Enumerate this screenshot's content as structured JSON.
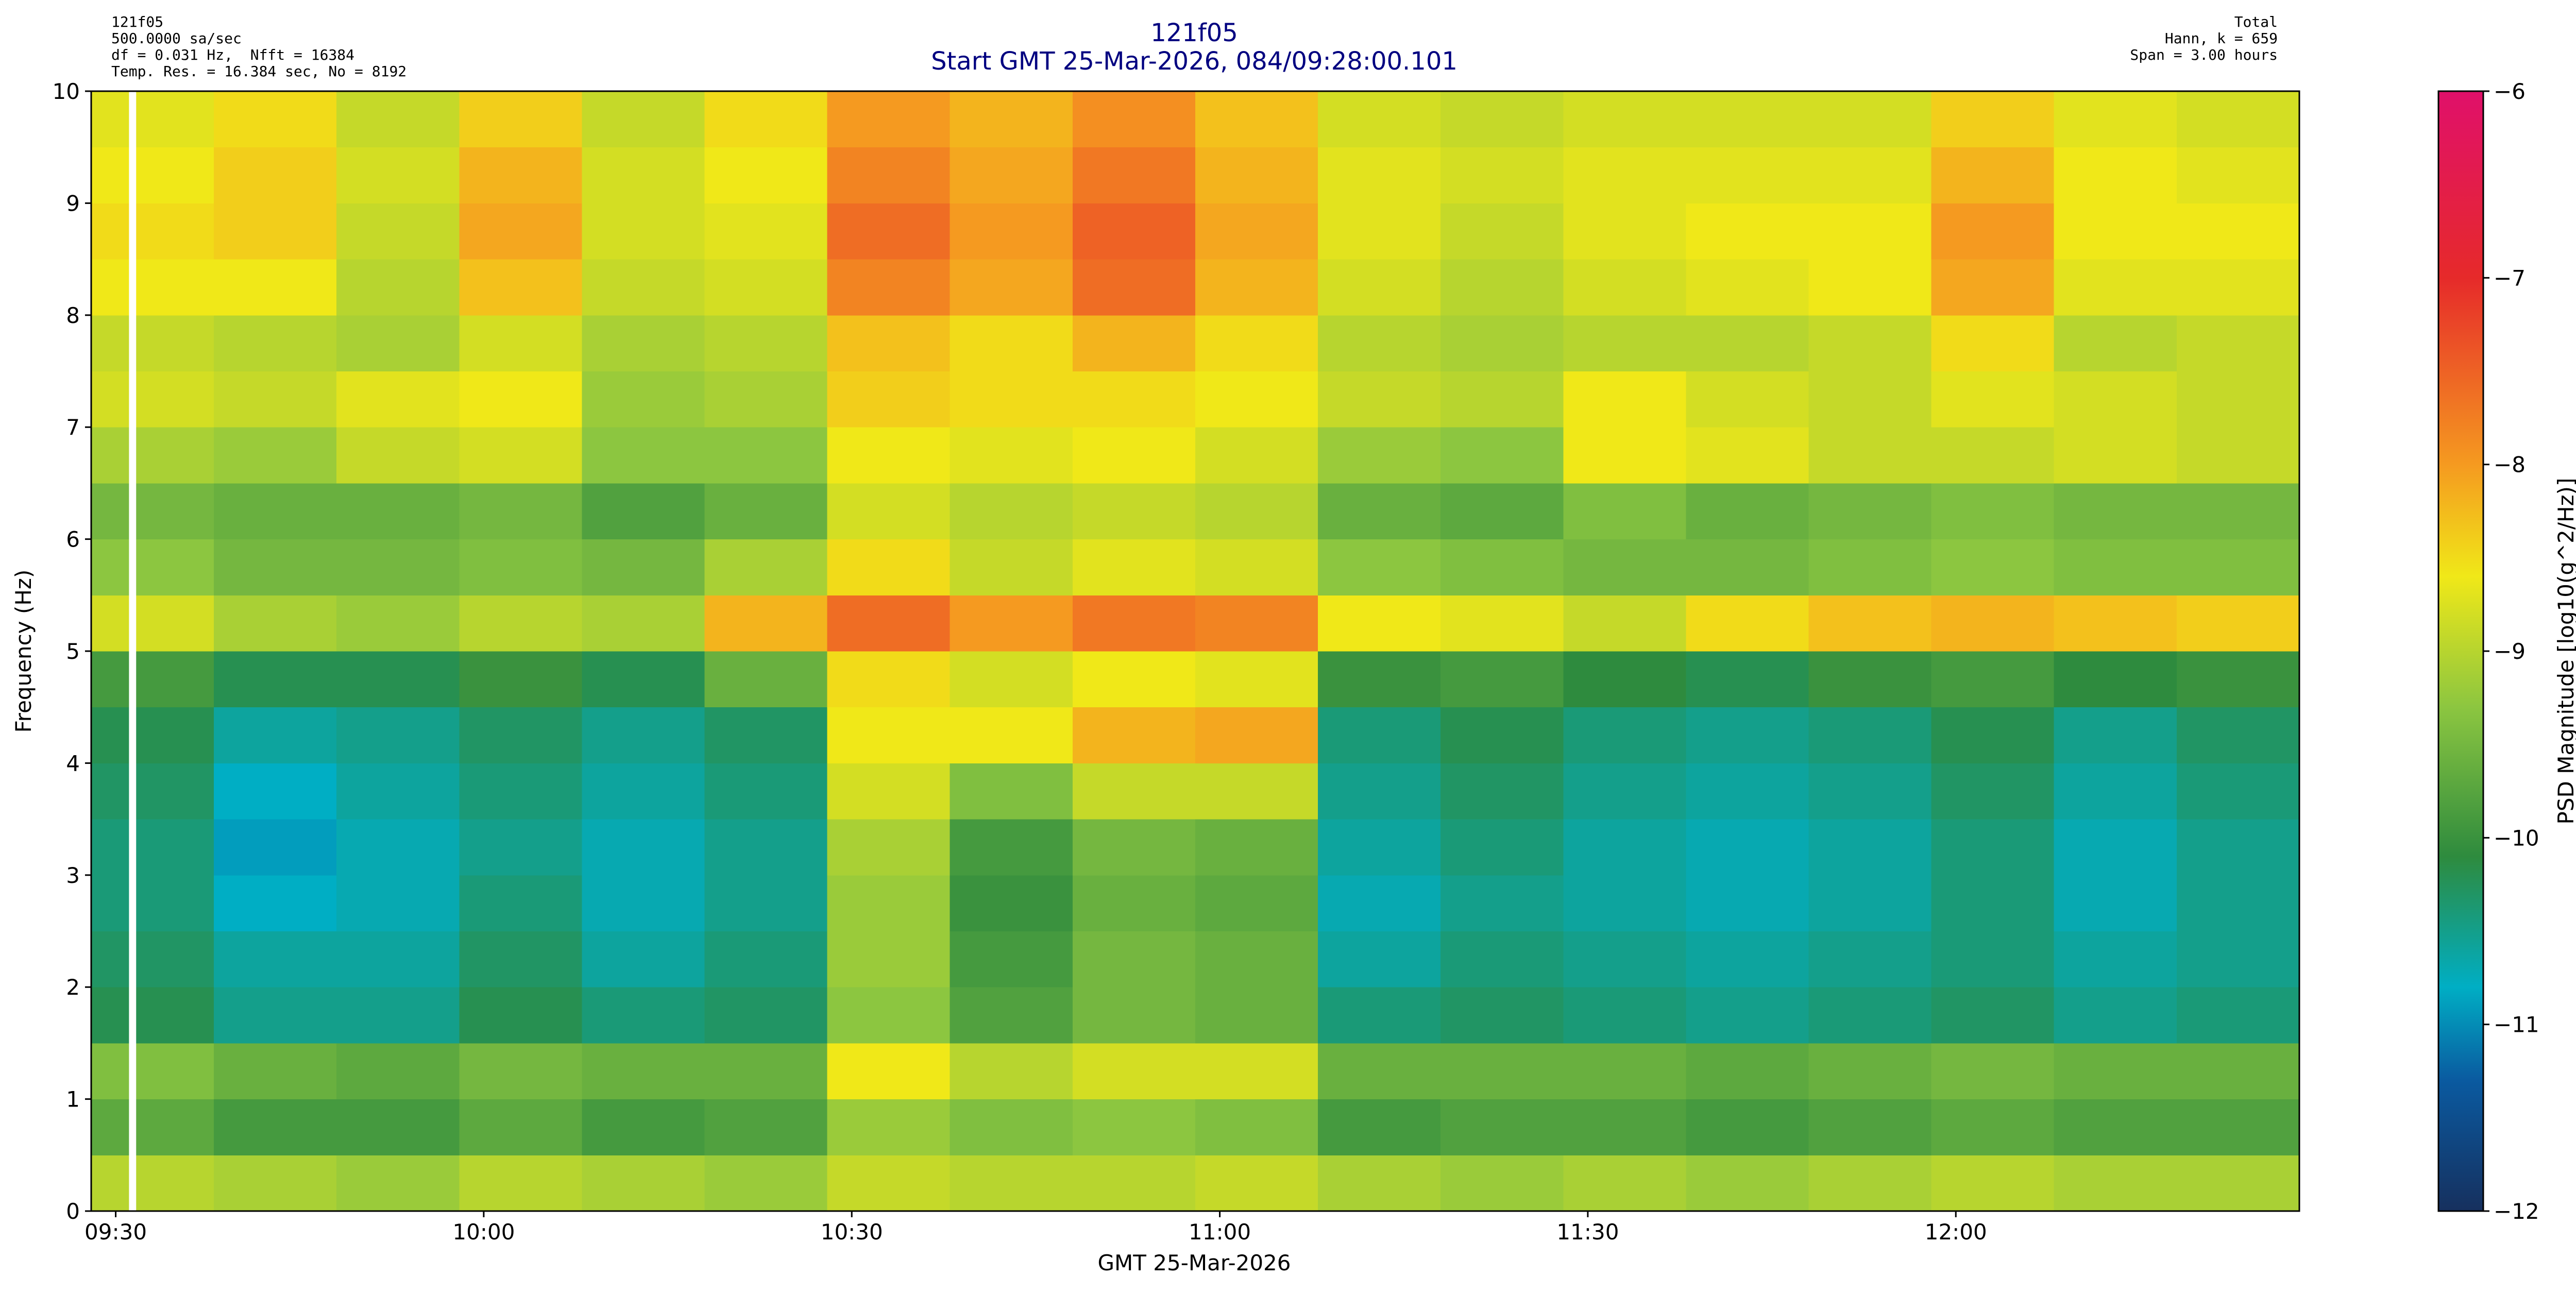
{
  "chart_data": {
    "type": "heatmap",
    "title": "121f05",
    "subtitle": "Start GMT 25-Mar-2026, 084/09:28:00.101",
    "info_left": [
      "121f05",
      "500.0000 sa/sec",
      "df = 0.031 Hz,  Nfft = 16384",
      "Temp. Res. = 16.384 sec, No = 8192"
    ],
    "info_right": [
      "Total",
      "Hann, k = 659",
      "Span = 3.00 hours"
    ],
    "x_label": "GMT 25-Mar-2026",
    "y_label": "Frequency (Hz)",
    "colorbar_label": "PSD Magnitude [log10(g^2/Hz)]",
    "xlim": [
      "09:28:00.101",
      "12:28:00.101"
    ],
    "xticks": [
      "09:30",
      "10:00",
      "10:30",
      "11:00",
      "11:30",
      "12:00"
    ],
    "ylim": [
      0,
      10
    ],
    "yticks": [
      0,
      1,
      2,
      3,
      4,
      5,
      6,
      7,
      8,
      9,
      10
    ],
    "x_bins": [
      "09:28",
      "09:38",
      "09:48",
      "09:58",
      "10:08",
      "10:18",
      "10:28",
      "10:38",
      "10:48",
      "10:58",
      "11:08",
      "11:18",
      "11:28",
      "11:38",
      "11:48",
      "11:58",
      "12:08",
      "12:18",
      "12:28"
    ],
    "y_bins": [
      0,
      0.5,
      1,
      1.5,
      2,
      2.5,
      3,
      3.5,
      4,
      4.5,
      5,
      5.5,
      6,
      6.5,
      7,
      7.5,
      8,
      8.5,
      9,
      9.5,
      10
    ],
    "z": [
      [
        -9.0,
        -9.1,
        -9.2,
        -9.0,
        -9.1,
        -9.2,
        -8.9,
        -9.0,
        -9.0,
        -8.9,
        -9.1,
        -9.2,
        -9.1,
        -9.2,
        -9.1,
        -9.0,
        -9.1,
        -9.1
      ],
      [
        -9.7,
        -9.9,
        -9.9,
        -9.7,
        -9.9,
        -9.8,
        -9.2,
        -9.4,
        -9.3,
        -9.4,
        -9.9,
        -9.8,
        -9.8,
        -9.9,
        -9.8,
        -9.7,
        -9.8,
        -9.8
      ],
      [
        -9.4,
        -9.6,
        -9.7,
        -9.5,
        -9.6,
        -9.6,
        -8.6,
        -9.0,
        -8.8,
        -8.8,
        -9.6,
        -9.6,
        -9.6,
        -9.7,
        -9.6,
        -9.5,
        -9.6,
        -9.6
      ],
      [
        -10.2,
        -10.5,
        -10.5,
        -10.2,
        -10.4,
        -10.3,
        -9.3,
        -9.8,
        -9.5,
        -9.6,
        -10.4,
        -10.3,
        -10.4,
        -10.5,
        -10.4,
        -10.3,
        -10.5,
        -10.4
      ],
      [
        -10.3,
        -10.6,
        -10.6,
        -10.3,
        -10.6,
        -10.4,
        -9.2,
        -9.9,
        -9.5,
        -9.6,
        -10.6,
        -10.4,
        -10.5,
        -10.6,
        -10.5,
        -10.4,
        -10.6,
        -10.5
      ],
      [
        -10.4,
        -10.8,
        -10.7,
        -10.4,
        -10.7,
        -10.5,
        -9.2,
        -10.0,
        -9.6,
        -9.7,
        -10.7,
        -10.5,
        -10.6,
        -10.7,
        -10.6,
        -10.4,
        -10.7,
        -10.5
      ],
      [
        -10.4,
        -10.9,
        -10.7,
        -10.5,
        -10.7,
        -10.5,
        -9.1,
        -9.9,
        -9.5,
        -9.6,
        -10.6,
        -10.4,
        -10.6,
        -10.7,
        -10.6,
        -10.4,
        -10.7,
        -10.5
      ],
      [
        -10.3,
        -10.8,
        -10.6,
        -10.4,
        -10.6,
        -10.4,
        -8.8,
        -9.4,
        -8.9,
        -8.9,
        -10.5,
        -10.3,
        -10.5,
        -10.6,
        -10.5,
        -10.3,
        -10.6,
        -10.4
      ],
      [
        -10.2,
        -10.6,
        -10.5,
        -10.3,
        -10.5,
        -10.3,
        -8.6,
        -8.6,
        -8.2,
        -8.1,
        -10.4,
        -10.2,
        -10.4,
        -10.5,
        -10.4,
        -10.2,
        -10.5,
        -10.3
      ],
      [
        -9.9,
        -10.2,
        -10.2,
        -10.0,
        -10.2,
        -9.6,
        -8.5,
        -8.8,
        -8.6,
        -8.7,
        -10.0,
        -9.9,
        -10.1,
        -10.2,
        -10.0,
        -9.9,
        -10.1,
        -10.0
      ],
      [
        -8.8,
        -9.1,
        -9.2,
        -9.0,
        -9.1,
        -8.2,
        -7.6,
        -8.0,
        -7.7,
        -7.8,
        -8.6,
        -8.7,
        -8.9,
        -8.5,
        -8.3,
        -8.2,
        -8.3,
        -8.4
      ],
      [
        -9.3,
        -9.5,
        -9.5,
        -9.4,
        -9.5,
        -9.1,
        -8.5,
        -8.9,
        -8.7,
        -8.8,
        -9.3,
        -9.4,
        -9.5,
        -9.5,
        -9.4,
        -9.3,
        -9.4,
        -9.4
      ],
      [
        -9.5,
        -9.6,
        -9.6,
        -9.5,
        -9.8,
        -9.6,
        -8.8,
        -9.0,
        -8.9,
        -9.0,
        -9.6,
        -9.7,
        -9.4,
        -9.6,
        -9.5,
        -9.4,
        -9.5,
        -9.5
      ],
      [
        -9.1,
        -9.2,
        -8.9,
        -8.8,
        -9.3,
        -9.3,
        -8.6,
        -8.7,
        -8.6,
        -8.8,
        -9.2,
        -9.3,
        -8.6,
        -8.7,
        -8.9,
        -8.9,
        -8.8,
        -8.9
      ],
      [
        -8.8,
        -8.9,
        -8.7,
        -8.6,
        -9.2,
        -9.1,
        -8.4,
        -8.5,
        -8.5,
        -8.6,
        -8.9,
        -9.0,
        -8.6,
        -8.8,
        -8.9,
        -8.7,
        -8.8,
        -8.9
      ],
      [
        -8.9,
        -9.0,
        -9.1,
        -8.8,
        -9.1,
        -9.0,
        -8.3,
        -8.5,
        -8.2,
        -8.5,
        -9.0,
        -9.1,
        -9.0,
        -9.0,
        -8.9,
        -8.5,
        -9.0,
        -8.9
      ],
      [
        -8.6,
        -8.6,
        -9.0,
        -8.3,
        -8.9,
        -8.8,
        -7.8,
        -8.1,
        -7.6,
        -8.2,
        -8.8,
        -9.0,
        -8.8,
        -8.7,
        -8.6,
        -8.1,
        -8.7,
        -8.7
      ],
      [
        -8.5,
        -8.4,
        -8.9,
        -8.1,
        -8.8,
        -8.7,
        -7.6,
        -8.0,
        -7.5,
        -8.1,
        -8.7,
        -8.9,
        -8.7,
        -8.6,
        -8.6,
        -8.0,
        -8.6,
        -8.6
      ],
      [
        -8.6,
        -8.4,
        -8.8,
        -8.2,
        -8.8,
        -8.6,
        -7.8,
        -8.1,
        -7.7,
        -8.2,
        -8.7,
        -8.8,
        -8.7,
        -8.7,
        -8.7,
        -8.2,
        -8.6,
        -8.7
      ],
      [
        -8.7,
        -8.5,
        -8.9,
        -8.4,
        -8.9,
        -8.5,
        -8.0,
        -8.2,
        -7.9,
        -8.3,
        -8.8,
        -8.9,
        -8.8,
        -8.8,
        -8.8,
        -8.4,
        -8.7,
        -8.8
      ]
    ],
    "gaps": [
      [
        "09:31:05",
        "09:31:40"
      ]
    ],
    "gap_color": "#ffffff",
    "zlim": [
      -12,
      -6
    ],
    "zticks": [
      {
        "value": -6,
        "label": "−6"
      },
      {
        "value": -7,
        "label": "−7"
      },
      {
        "value": -8,
        "label": "−8"
      },
      {
        "value": -9,
        "label": "−9"
      },
      {
        "value": -10,
        "label": "−10"
      },
      {
        "value": -11,
        "label": "−11"
      },
      {
        "value": -12,
        "label": "−12"
      }
    ],
    "colormap": [
      [
        -12,
        "#16305e"
      ],
      [
        -11.3,
        "#0a5aa0"
      ],
      [
        -10.8,
        "#00aec4"
      ],
      [
        -10.1,
        "#2e8b3e"
      ],
      [
        -9.3,
        "#8cc640"
      ],
      [
        -8.6,
        "#f0e818"
      ],
      [
        -8.0,
        "#f59a20"
      ],
      [
        -7.0,
        "#e62a2a"
      ],
      [
        -6.0,
        "#e0106a"
      ]
    ]
  }
}
